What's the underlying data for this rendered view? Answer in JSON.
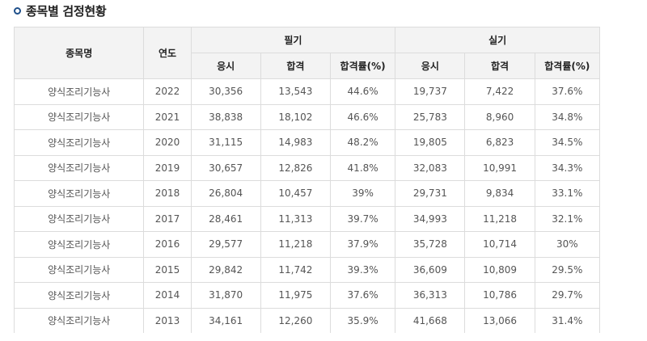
{
  "section_title": "종목별 검정현황",
  "headers": {
    "subject": "종목명",
    "year": "연도",
    "written": "필기",
    "practical": "실기",
    "applicants": "응시",
    "passed": "합격",
    "pass_rate": "합격률(%)"
  },
  "rows": [
    {
      "subject": "양식조리기능사",
      "year": "2022",
      "w_app": "30,356",
      "w_pass": "13,543",
      "w_rate": "44.6%",
      "p_app": "19,737",
      "p_pass": "7,422",
      "p_rate": "37.6%"
    },
    {
      "subject": "양식조리기능사",
      "year": "2021",
      "w_app": "38,838",
      "w_pass": "18,102",
      "w_rate": "46.6%",
      "p_app": "25,783",
      "p_pass": "8,960",
      "p_rate": "34.8%"
    },
    {
      "subject": "양식조리기능사",
      "year": "2020",
      "w_app": "31,115",
      "w_pass": "14,983",
      "w_rate": "48.2%",
      "p_app": "19,805",
      "p_pass": "6,823",
      "p_rate": "34.5%"
    },
    {
      "subject": "양식조리기능사",
      "year": "2019",
      "w_app": "30,657",
      "w_pass": "12,826",
      "w_rate": "41.8%",
      "p_app": "32,083",
      "p_pass": "10,991",
      "p_rate": "34.3%"
    },
    {
      "subject": "양식조리기능사",
      "year": "2018",
      "w_app": "26,804",
      "w_pass": "10,457",
      "w_rate": "39%",
      "p_app": "29,731",
      "p_pass": "9,834",
      "p_rate": "33.1%"
    },
    {
      "subject": "양식조리기능사",
      "year": "2017",
      "w_app": "28,461",
      "w_pass": "11,313",
      "w_rate": "39.7%",
      "p_app": "34,993",
      "p_pass": "11,218",
      "p_rate": "32.1%"
    },
    {
      "subject": "양식조리기능사",
      "year": "2016",
      "w_app": "29,577",
      "w_pass": "11,218",
      "w_rate": "37.9%",
      "p_app": "35,728",
      "p_pass": "10,714",
      "p_rate": "30%"
    },
    {
      "subject": "양식조리기능사",
      "year": "2015",
      "w_app": "29,842",
      "w_pass": "11,742",
      "w_rate": "39.3%",
      "p_app": "36,609",
      "p_pass": "10,809",
      "p_rate": "29.5%"
    },
    {
      "subject": "양식조리기능사",
      "year": "2014",
      "w_app": "31,870",
      "w_pass": "11,975",
      "w_rate": "37.6%",
      "p_app": "36,313",
      "p_pass": "10,786",
      "p_rate": "29.7%"
    },
    {
      "subject": "양식조리기능사",
      "year": "2013",
      "w_app": "34,161",
      "w_pass": "12,260",
      "w_rate": "35.9%",
      "p_app": "41,668",
      "p_pass": "13,066",
      "p_rate": "31.4%"
    }
  ]
}
